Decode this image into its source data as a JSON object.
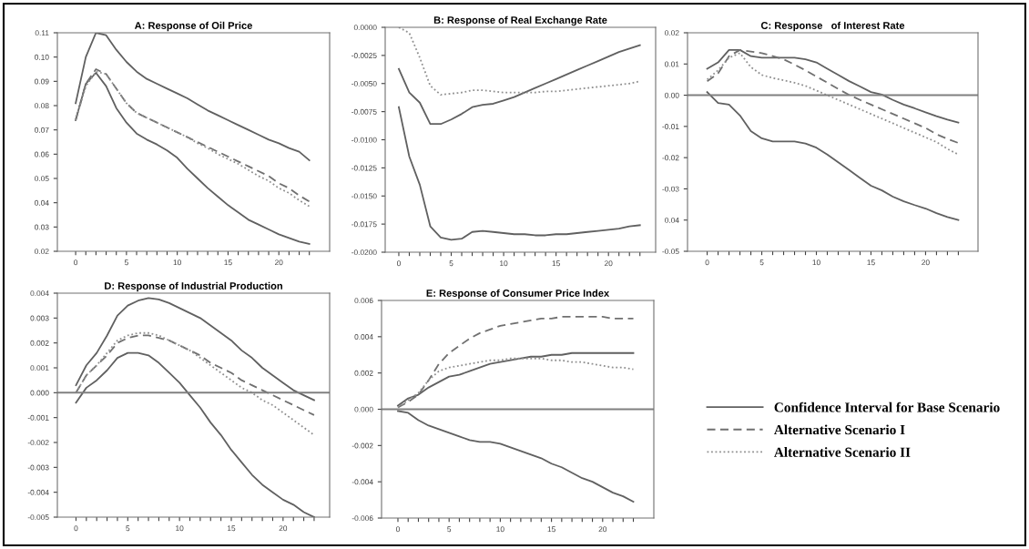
{
  "chart_data": [
    {
      "type": "line",
      "title": "A: Response of Oil Price",
      "x": [
        0,
        1,
        2,
        3,
        4,
        5,
        6,
        7,
        8,
        9,
        10,
        11,
        12,
        13,
        14,
        15,
        16,
        17,
        18,
        19,
        20,
        21,
        22,
        23
      ],
      "xlim": [
        -1.8,
        25
      ],
      "xticks": [
        0,
        {
          "value": 1,
          "label": null
        },
        {
          "value": 2,
          "label": null
        },
        {
          "value": 3,
          "label": null
        },
        {
          "value": 4,
          "label": null
        },
        5,
        {
          "value": 6,
          "label": null
        },
        {
          "value": 7,
          "label": null
        },
        {
          "value": 8,
          "label": null
        },
        {
          "value": 9,
          "label": null
        },
        10,
        {
          "value": 11,
          "label": null
        },
        {
          "value": 12,
          "label": null
        },
        {
          "value": 13,
          "label": null
        },
        {
          "value": 14,
          "label": null
        },
        15,
        {
          "value": 16,
          "label": null
        },
        {
          "value": 17,
          "label": null
        },
        {
          "value": 18,
          "label": null
        },
        {
          "value": 19,
          "label": null
        },
        20,
        {
          "value": 21,
          "label": null
        },
        {
          "value": 22,
          "label": null
        },
        {
          "value": 23,
          "label": null
        }
      ],
      "ylim": [
        0.02,
        0.11
      ],
      "yticks": [
        0.02,
        0.03,
        0.04,
        0.05,
        0.06,
        0.07,
        0.08,
        0.09,
        {
          "value": 0.1,
          "label": "0.10"
        },
        0.11
      ],
      "series": [
        {
          "color": "#606060",
          "line_style": "solid",
          "values": [
            0.081,
            0.1,
            0.11,
            0.109,
            0.103,
            0.098,
            0.094,
            0.091,
            0.089,
            0.087,
            0.085,
            0.083,
            0.0805,
            0.078,
            0.076,
            0.074,
            0.072,
            0.07,
            0.068,
            0.066,
            0.0645,
            0.0625,
            0.061,
            0.0575
          ]
        },
        {
          "color": "#606060",
          "line_style": "solid",
          "values": [
            0.074,
            0.089,
            0.0935,
            0.088,
            0.079,
            0.073,
            0.0685,
            0.066,
            0.064,
            0.0615,
            0.0585,
            0.054,
            0.05,
            0.046,
            0.0425,
            0.039,
            0.036,
            0.033,
            0.031,
            0.029,
            0.027,
            0.0255,
            0.024,
            0.023
          ]
        },
        {
          "color": "#707070",
          "line_style": "dashed",
          "values": [
            0.074,
            0.089,
            0.095,
            0.093,
            0.087,
            0.081,
            0.077,
            0.075,
            0.073,
            0.071,
            0.069,
            0.067,
            0.065,
            0.063,
            0.061,
            0.059,
            0.057,
            0.055,
            0.053,
            0.051,
            0.048,
            0.046,
            0.043,
            0.0405
          ]
        },
        {
          "color": "#909090",
          "line_style": "dotted",
          "values": [
            0.074,
            0.088,
            0.094,
            0.093,
            0.087,
            0.081,
            0.077,
            0.075,
            0.073,
            0.071,
            0.069,
            0.067,
            0.0645,
            0.0625,
            0.06,
            0.058,
            0.056,
            0.0535,
            0.051,
            0.049,
            0.046,
            0.044,
            0.041,
            0.0385
          ]
        }
      ]
    },
    {
      "type": "line",
      "title": "B: Response of Real Exchange Rate",
      "x": [
        0,
        1,
        2,
        3,
        4,
        5,
        6,
        7,
        8,
        9,
        10,
        11,
        12,
        13,
        14,
        15,
        16,
        17,
        18,
        19,
        20,
        21,
        22,
        23
      ],
      "xlim": [
        -1.3,
        24.5
      ],
      "xticks": [
        0,
        {
          "value": 1,
          "label": null
        },
        {
          "value": 2,
          "label": null
        },
        {
          "value": 3,
          "label": null
        },
        {
          "value": 4,
          "label": null
        },
        5,
        {
          "value": 6,
          "label": null
        },
        {
          "value": 7,
          "label": null
        },
        {
          "value": 8,
          "label": null
        },
        {
          "value": 9,
          "label": null
        },
        10,
        {
          "value": 11,
          "label": null
        },
        {
          "value": 12,
          "label": null
        },
        {
          "value": 13,
          "label": null
        },
        {
          "value": 14,
          "label": null
        },
        15,
        {
          "value": 16,
          "label": null
        },
        {
          "value": 17,
          "label": null
        },
        {
          "value": 18,
          "label": null
        },
        {
          "value": 19,
          "label": null
        },
        20,
        {
          "value": 21,
          "label": null
        },
        {
          "value": 22,
          "label": null
        },
        {
          "value": 23,
          "label": null
        }
      ],
      "ylim": [
        -0.02,
        0.0
      ],
      "yticks": [
        {
          "value": -0.02,
          "label": "-0.0200"
        },
        {
          "value": -0.0175,
          "label": "-0.0175"
        },
        {
          "value": -0.015,
          "label": "-0.0150"
        },
        {
          "value": -0.0125,
          "label": "-0.0125"
        },
        {
          "value": -0.01,
          "label": "-0.0100"
        },
        {
          "value": -0.0075,
          "label": "-0.0075"
        },
        {
          "value": -0.005,
          "label": "-0.0050"
        },
        {
          "value": -0.0025,
          "label": "-0.0025"
        },
        {
          "value": 0.0,
          "label": "0.0000"
        }
      ],
      "series": [
        {
          "color": "#606060",
          "line_style": "solid",
          "values": [
            -0.0037,
            -0.0058,
            -0.0067,
            -0.0086,
            -0.0086,
            -0.0082,
            -0.0077,
            -0.0071,
            -0.0069,
            -0.0068,
            -0.0065,
            -0.0062,
            -0.0058,
            -0.0054,
            -0.005,
            -0.0046,
            -0.0042,
            -0.0038,
            -0.0034,
            -0.003,
            -0.0026,
            -0.0022,
            -0.0019,
            -0.0016
          ]
        },
        {
          "color": "#606060",
          "line_style": "solid",
          "values": [
            -0.0071,
            -0.0115,
            -0.014,
            -0.0177,
            -0.0187,
            -0.0189,
            -0.0188,
            -0.0182,
            -0.0181,
            -0.0182,
            -0.0183,
            -0.0184,
            -0.0184,
            -0.0185,
            -0.0185,
            -0.0184,
            -0.0184,
            -0.0183,
            -0.0182,
            -0.0181,
            -0.018,
            -0.0179,
            -0.0177,
            -0.0176
          ]
        },
        {
          "color": "#909090",
          "line_style": "dotted",
          "values": [
            0.0,
            -0.0005,
            -0.0027,
            -0.0052,
            -0.006,
            -0.0059,
            -0.0058,
            -0.0056,
            -0.0056,
            -0.0057,
            -0.0058,
            -0.0058,
            -0.0058,
            -0.0058,
            -0.0057,
            -0.0057,
            -0.0056,
            -0.0055,
            -0.0054,
            -0.0053,
            -0.0052,
            -0.0051,
            -0.005,
            -0.0048
          ]
        }
      ]
    },
    {
      "type": "line",
      "title": "C: Response   of Interest Rate",
      "x": [
        0,
        1,
        2,
        3,
        4,
        5,
        6,
        7,
        8,
        9,
        10,
        11,
        12,
        13,
        14,
        15,
        16,
        17,
        18,
        19,
        20,
        21,
        22,
        23
      ],
      "xlim": [
        -1.8,
        24.8
      ],
      "xticks": [
        0,
        {
          "value": 1,
          "label": null
        },
        {
          "value": 2,
          "label": null
        },
        {
          "value": 3,
          "label": null
        },
        {
          "value": 4,
          "label": null
        },
        5,
        {
          "value": 6,
          "label": null
        },
        {
          "value": 7,
          "label": null
        },
        {
          "value": 8,
          "label": null
        },
        {
          "value": 9,
          "label": null
        },
        10,
        {
          "value": 11,
          "label": null
        },
        {
          "value": 12,
          "label": null
        },
        {
          "value": 13,
          "label": null
        },
        {
          "value": 14,
          "label": null
        },
        15,
        {
          "value": 16,
          "label": null
        },
        {
          "value": 17,
          "label": null
        },
        {
          "value": 18,
          "label": null
        },
        {
          "value": 19,
          "label": null
        },
        20,
        {
          "value": 21,
          "label": null
        },
        {
          "value": 22,
          "label": null
        },
        {
          "value": 23,
          "label": null
        }
      ],
      "ylim": [
        -0.05,
        0.02
      ],
      "yticks": [
        {
          "value": -0.05,
          "label": "-0.05"
        },
        {
          "value": -0.04,
          "label": "0.04"
        },
        {
          "value": -0.03,
          "label": "-0.03"
        },
        {
          "value": -0.02,
          "label": "-0.02"
        },
        {
          "value": -0.01,
          "label": "-0.01"
        },
        {
          "value": 0.0,
          "label": "0.00"
        },
        {
          "value": 0.01,
          "label": "0.01"
        },
        {
          "value": 0.02,
          "label": "0.02"
        }
      ],
      "ref_lines": [
        {
          "axis": "y",
          "value": 0.0,
          "color": "#808080"
        }
      ],
      "series": [
        {
          "color": "#606060",
          "line_style": "solid",
          "values": [
            0.0085,
            0.0105,
            0.0145,
            0.0145,
            0.0125,
            0.012,
            0.012,
            0.012,
            0.012,
            0.0115,
            0.0105,
            0.0085,
            0.0065,
            0.0045,
            0.0028,
            0.001,
            0.0002,
            -0.0015,
            -0.003,
            -0.0042,
            -0.0055,
            -0.0067,
            -0.0078,
            -0.0088
          ]
        },
        {
          "color": "#606060",
          "line_style": "solid",
          "values": [
            0.001,
            -0.0025,
            -0.003,
            -0.0065,
            -0.0115,
            -0.0138,
            -0.0148,
            -0.0148,
            -0.0148,
            -0.0155,
            -0.0168,
            -0.019,
            -0.0215,
            -0.024,
            -0.0265,
            -0.029,
            -0.0305,
            -0.0325,
            -0.034,
            -0.0352,
            -0.0363,
            -0.0378,
            -0.039,
            -0.04
          ]
        },
        {
          "color": "#707070",
          "line_style": "dashed",
          "values": [
            0.0045,
            0.007,
            0.0125,
            0.0145,
            0.014,
            0.0135,
            0.0125,
            0.0115,
            0.0098,
            0.008,
            0.006,
            0.004,
            0.002,
            0.0001,
            -0.0015,
            -0.003,
            -0.0045,
            -0.006,
            -0.0075,
            -0.009,
            -0.0105,
            -0.0125,
            -0.014,
            -0.0153
          ]
        },
        {
          "color": "#909090",
          "line_style": "dotted",
          "values": [
            0.005,
            0.008,
            0.012,
            0.0135,
            0.009,
            0.0065,
            0.0055,
            0.0048,
            0.004,
            0.003,
            0.0015,
            0.0,
            -0.0015,
            -0.003,
            -0.0045,
            -0.006,
            -0.0075,
            -0.009,
            -0.0105,
            -0.012,
            -0.0135,
            -0.015,
            -0.0172,
            -0.019
          ]
        }
      ]
    },
    {
      "type": "line",
      "title": "D: Response of Industrial Production",
      "x": [
        0,
        1,
        2,
        3,
        4,
        5,
        6,
        7,
        8,
        9,
        10,
        11,
        12,
        13,
        14,
        15,
        16,
        17,
        18,
        19,
        20,
        21,
        22,
        23
      ],
      "xlim": [
        -1.8,
        24.5
      ],
      "xticks": [
        0,
        {
          "value": 1,
          "label": null
        },
        {
          "value": 2,
          "label": null
        },
        {
          "value": 3,
          "label": null
        },
        {
          "value": 4,
          "label": null
        },
        5,
        {
          "value": 6,
          "label": null
        },
        {
          "value": 7,
          "label": null
        },
        {
          "value": 8,
          "label": null
        },
        {
          "value": 9,
          "label": null
        },
        10,
        {
          "value": 11,
          "label": null
        },
        {
          "value": 12,
          "label": null
        },
        {
          "value": 13,
          "label": null
        },
        {
          "value": 14,
          "label": null
        },
        15,
        {
          "value": 16,
          "label": null
        },
        {
          "value": 17,
          "label": null
        },
        {
          "value": 18,
          "label": null
        },
        {
          "value": 19,
          "label": null
        },
        20,
        {
          "value": 21,
          "label": null
        },
        {
          "value": 22,
          "label": null
        },
        {
          "value": 23,
          "label": null
        }
      ],
      "ylim": [
        -0.005,
        0.004
      ],
      "yticks": [
        {
          "value": -0.005,
          "label": "-0.005"
        },
        {
          "value": -0.004,
          "label": "-0.004"
        },
        {
          "value": -0.003,
          "label": "-0.003"
        },
        {
          "value": -0.002,
          "label": "-0.002"
        },
        {
          "value": -0.001,
          "label": "-0.001"
        },
        {
          "value": 0.0,
          "label": "0.000"
        },
        0.001,
        0.002,
        0.003,
        0.004
      ],
      "ref_lines": [
        {
          "axis": "y",
          "value": 0.0,
          "color": "#808080"
        }
      ],
      "series": [
        {
          "color": "#606060",
          "line_style": "solid",
          "values": [
            0.0003,
            0.0011,
            0.0016,
            0.0023,
            0.0031,
            0.0035,
            0.0037,
            0.0038,
            0.00375,
            0.0036,
            0.0034,
            0.0032,
            0.003,
            0.0027,
            0.0024,
            0.0021,
            0.0017,
            0.0014,
            0.001,
            0.0007,
            0.0004,
            0.0001,
            -0.0001,
            -0.0003
          ]
        },
        {
          "color": "#606060",
          "line_style": "solid",
          "values": [
            -0.0004,
            0.0002,
            0.0005,
            0.0009,
            0.0014,
            0.0016,
            0.0016,
            0.0015,
            0.0012,
            0.0008,
            0.0004,
            -0.0001,
            -0.0006,
            -0.0012,
            -0.0017,
            -0.0023,
            -0.0028,
            -0.0033,
            -0.0037,
            -0.004,
            -0.0043,
            -0.0045,
            -0.0048,
            -0.005
          ]
        },
        {
          "color": "#707070",
          "line_style": "dashed",
          "values": [
            0.0,
            0.0007,
            0.0011,
            0.0015,
            0.002,
            0.0022,
            0.0023,
            0.0023,
            0.0022,
            0.0021,
            0.0019,
            0.0017,
            0.0015,
            0.0012,
            0.001,
            0.0008,
            0.0005,
            0.0003,
            0.0001,
            -0.0001,
            -0.0003,
            -0.0005,
            -0.0007,
            -0.0009
          ]
        },
        {
          "color": "#909090",
          "line_style": "dotted",
          "values": [
            0.0,
            0.0007,
            0.0011,
            0.0016,
            0.0021,
            0.0023,
            0.0024,
            0.0024,
            0.0023,
            0.0021,
            0.0019,
            0.0017,
            0.0014,
            0.0011,
            0.0008,
            0.0005,
            0.0002,
            0.0,
            -0.0003,
            -0.0005,
            -0.0008,
            -0.0011,
            -0.0014,
            -0.0017
          ]
        }
      ]
    },
    {
      "type": "line",
      "title": "E: Response of Consumer Price Index",
      "x": [
        0,
        1,
        2,
        3,
        4,
        5,
        6,
        7,
        8,
        9,
        10,
        11,
        12,
        13,
        14,
        15,
        16,
        17,
        18,
        19,
        20,
        21,
        22,
        23
      ],
      "xlim": [
        -1.6,
        25
      ],
      "xticks": [
        0,
        {
          "value": 1,
          "label": null
        },
        {
          "value": 2,
          "label": null
        },
        {
          "value": 3,
          "label": null
        },
        {
          "value": 4,
          "label": null
        },
        5,
        {
          "value": 6,
          "label": null
        },
        {
          "value": 7,
          "label": null
        },
        {
          "value": 8,
          "label": null
        },
        {
          "value": 9,
          "label": null
        },
        10,
        {
          "value": 11,
          "label": null
        },
        {
          "value": 12,
          "label": null
        },
        {
          "value": 13,
          "label": null
        },
        {
          "value": 14,
          "label": null
        },
        15,
        {
          "value": 16,
          "label": null
        },
        {
          "value": 17,
          "label": null
        },
        {
          "value": 18,
          "label": null
        },
        {
          "value": 19,
          "label": null
        },
        20,
        {
          "value": 21,
          "label": null
        },
        {
          "value": 22,
          "label": null
        },
        {
          "value": 23,
          "label": null
        }
      ],
      "ylim": [
        -0.006,
        0.006
      ],
      "yticks": [
        {
          "value": -0.006,
          "label": "-0.006"
        },
        {
          "value": -0.004,
          "label": "-0.004"
        },
        {
          "value": -0.002,
          "label": "-0.002"
        },
        {
          "value": 0.0,
          "label": "0.000"
        },
        0.002,
        0.004,
        0.006
      ],
      "ref_lines": [
        {
          "axis": "y",
          "value": 0.0,
          "color": "#808080"
        }
      ],
      "legend": "right",
      "series": [
        {
          "name": "Confidence Interval for Base Scenario",
          "color": "#606060",
          "line_style": "solid",
          "values": [
            0.0002,
            0.0006,
            0.0008,
            0.0012,
            0.0015,
            0.0018,
            0.0019,
            0.0021,
            0.0023,
            0.0025,
            0.0026,
            0.0027,
            0.0028,
            0.0029,
            0.0029,
            0.003,
            0.003,
            0.0031,
            0.0031,
            0.0031,
            0.0031,
            0.0031,
            0.0031,
            0.0031
          ]
        },
        {
          "color": "#606060",
          "line_style": "solid",
          "values": [
            -0.0001,
            -0.0002,
            -0.0006,
            -0.0009,
            -0.0011,
            -0.0013,
            -0.0015,
            -0.0017,
            -0.0018,
            -0.0018,
            -0.0019,
            -0.0021,
            -0.0023,
            -0.0025,
            -0.0027,
            -0.003,
            -0.0032,
            -0.0035,
            -0.0038,
            -0.004,
            -0.0043,
            -0.0046,
            -0.0048,
            -0.0051
          ]
        },
        {
          "name": "Alternative Scenario I",
          "color": "#707070",
          "line_style": "dashed",
          "values": [
            0.0001,
            0.0004,
            0.0008,
            0.0016,
            0.0025,
            0.0031,
            0.0035,
            0.0039,
            0.0042,
            0.0044,
            0.0046,
            0.0047,
            0.0048,
            0.0049,
            0.005,
            0.005,
            0.0051,
            0.0051,
            0.0051,
            0.0051,
            0.0051,
            0.005,
            0.005,
            0.005
          ]
        },
        {
          "name": "Alternative Scenario II",
          "color": "#909090",
          "line_style": "dotted",
          "values": [
            0.0001,
            0.0005,
            0.0009,
            0.0016,
            0.0021,
            0.0023,
            0.0024,
            0.0025,
            0.0026,
            0.0027,
            0.0027,
            0.0028,
            0.0028,
            0.0028,
            0.0028,
            0.0027,
            0.0027,
            0.0026,
            0.0026,
            0.0025,
            0.0024,
            0.0023,
            0.0023,
            0.0022
          ]
        }
      ]
    }
  ]
}
